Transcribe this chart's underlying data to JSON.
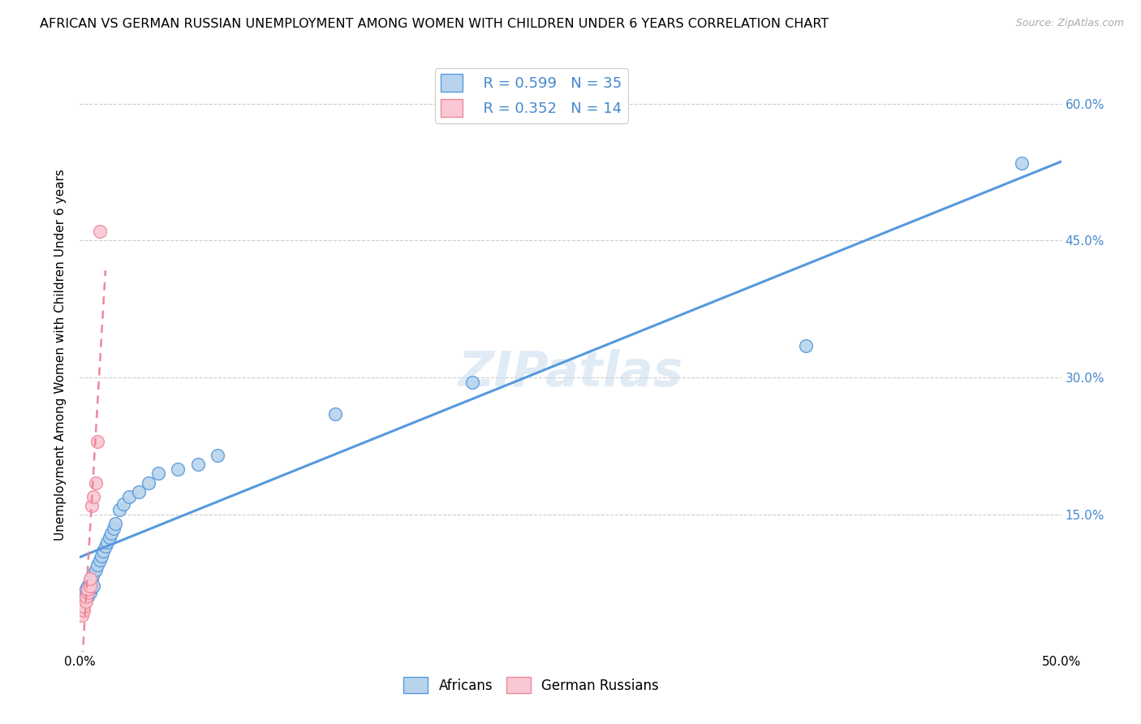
{
  "title": "AFRICAN VS GERMAN RUSSIAN UNEMPLOYMENT AMONG WOMEN WITH CHILDREN UNDER 6 YEARS CORRELATION CHART",
  "source": "Source: ZipAtlas.com",
  "ylabel": "Unemployment Among Women with Children Under 6 years",
  "xlim": [
    0.0,
    0.5
  ],
  "ylim": [
    0.0,
    0.65
  ],
  "xticks": [
    0.0,
    0.5
  ],
  "xticklabels": [
    "0.0%",
    "50.0%"
  ],
  "yticks": [
    0.15,
    0.3,
    0.45,
    0.6
  ],
  "yticklabels": [
    "15.0%",
    "30.0%",
    "45.0%",
    "60.0%"
  ],
  "africans_x": [
    0.002,
    0.003,
    0.003,
    0.004,
    0.004,
    0.005,
    0.005,
    0.006,
    0.006,
    0.007,
    0.007,
    0.008,
    0.009,
    0.01,
    0.011,
    0.012,
    0.013,
    0.014,
    0.015,
    0.016,
    0.017,
    0.018,
    0.02,
    0.022,
    0.025,
    0.03,
    0.035,
    0.04,
    0.05,
    0.06,
    0.07,
    0.13,
    0.2,
    0.37,
    0.48
  ],
  "africans_y": [
    0.055,
    0.062,
    0.068,
    0.06,
    0.072,
    0.065,
    0.075,
    0.07,
    0.08,
    0.072,
    0.085,
    0.09,
    0.095,
    0.1,
    0.105,
    0.11,
    0.115,
    0.12,
    0.125,
    0.13,
    0.135,
    0.14,
    0.155,
    0.162,
    0.17,
    0.175,
    0.185,
    0.195,
    0.2,
    0.205,
    0.215,
    0.26,
    0.295,
    0.335,
    0.535
  ],
  "german_russians_x": [
    0.001,
    0.002,
    0.002,
    0.003,
    0.003,
    0.004,
    0.004,
    0.005,
    0.005,
    0.006,
    0.007,
    0.008,
    0.009,
    0.01
  ],
  "german_russians_y": [
    0.04,
    0.045,
    0.05,
    0.055,
    0.06,
    0.065,
    0.068,
    0.072,
    0.08,
    0.16,
    0.17,
    0.185,
    0.23,
    0.46
  ],
  "africans_color": "#b8d4ec",
  "german_russians_color": "#f9c8d4",
  "africans_line_color": "#5599dd",
  "german_russians_line_color": "#ee8899",
  "africans_R": 0.599,
  "africans_N": 35,
  "german_russians_R": 0.352,
  "german_russians_N": 14,
  "watermark": "ZIPatlas",
  "background_color": "#ffffff",
  "grid_color": "#cccccc",
  "tick_color": "#4488cc"
}
